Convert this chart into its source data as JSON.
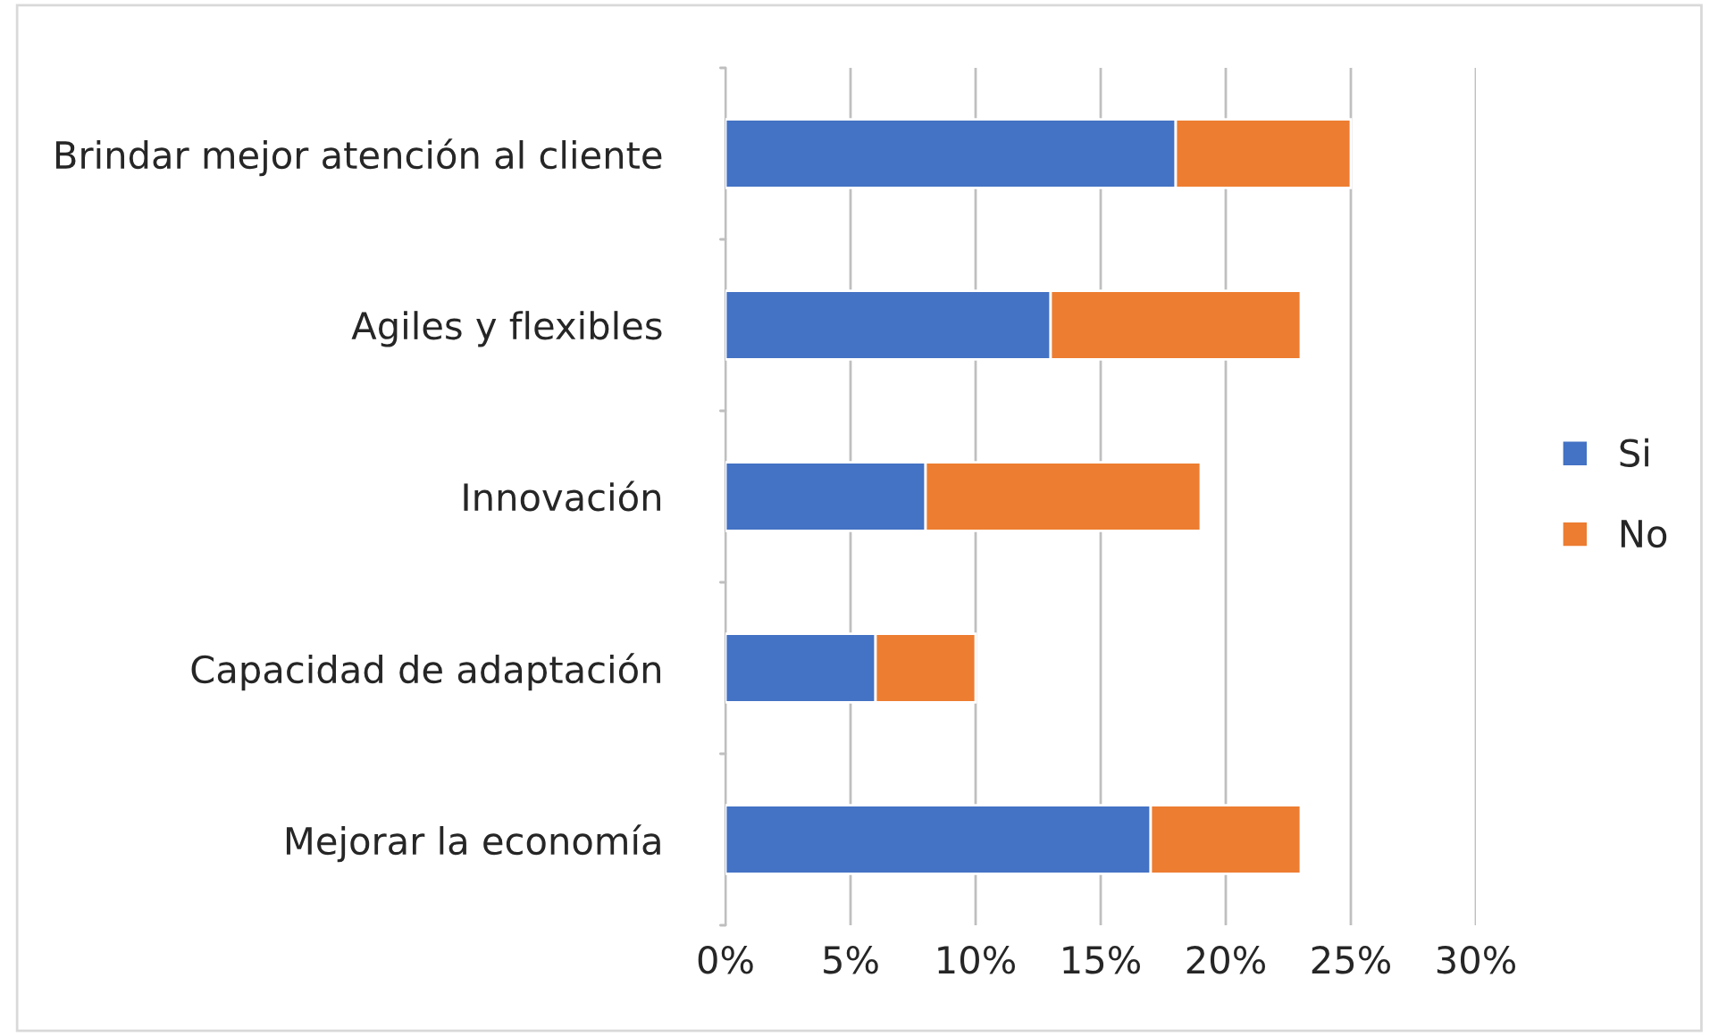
{
  "chart_data": {
    "type": "bar",
    "orientation": "horizontal",
    "stacked": true,
    "categories": [
      "Brindar mejor atención al cliente",
      "Agiles y flexibles",
      "Innovación",
      "Capacidad de adaptación",
      "Mejorar la economía"
    ],
    "series": [
      {
        "name": "Si",
        "color": "#4472c4",
        "values": [
          18,
          13,
          8,
          6,
          17
        ]
      },
      {
        "name": "No",
        "color": "#ed7d31",
        "values": [
          7,
          10,
          11,
          4,
          6
        ]
      }
    ],
    "xlim": [
      0,
      30
    ],
    "xticks": [
      {
        "value": 0,
        "label": "0%"
      },
      {
        "value": 5,
        "label": "5%"
      },
      {
        "value": 10,
        "label": "10%"
      },
      {
        "value": 15,
        "label": "15%"
      },
      {
        "value": 20,
        "label": "20%"
      },
      {
        "value": 25,
        "label": "25%"
      },
      {
        "value": 30,
        "label": "30%"
      }
    ],
    "grid": "x",
    "legend": "right"
  }
}
